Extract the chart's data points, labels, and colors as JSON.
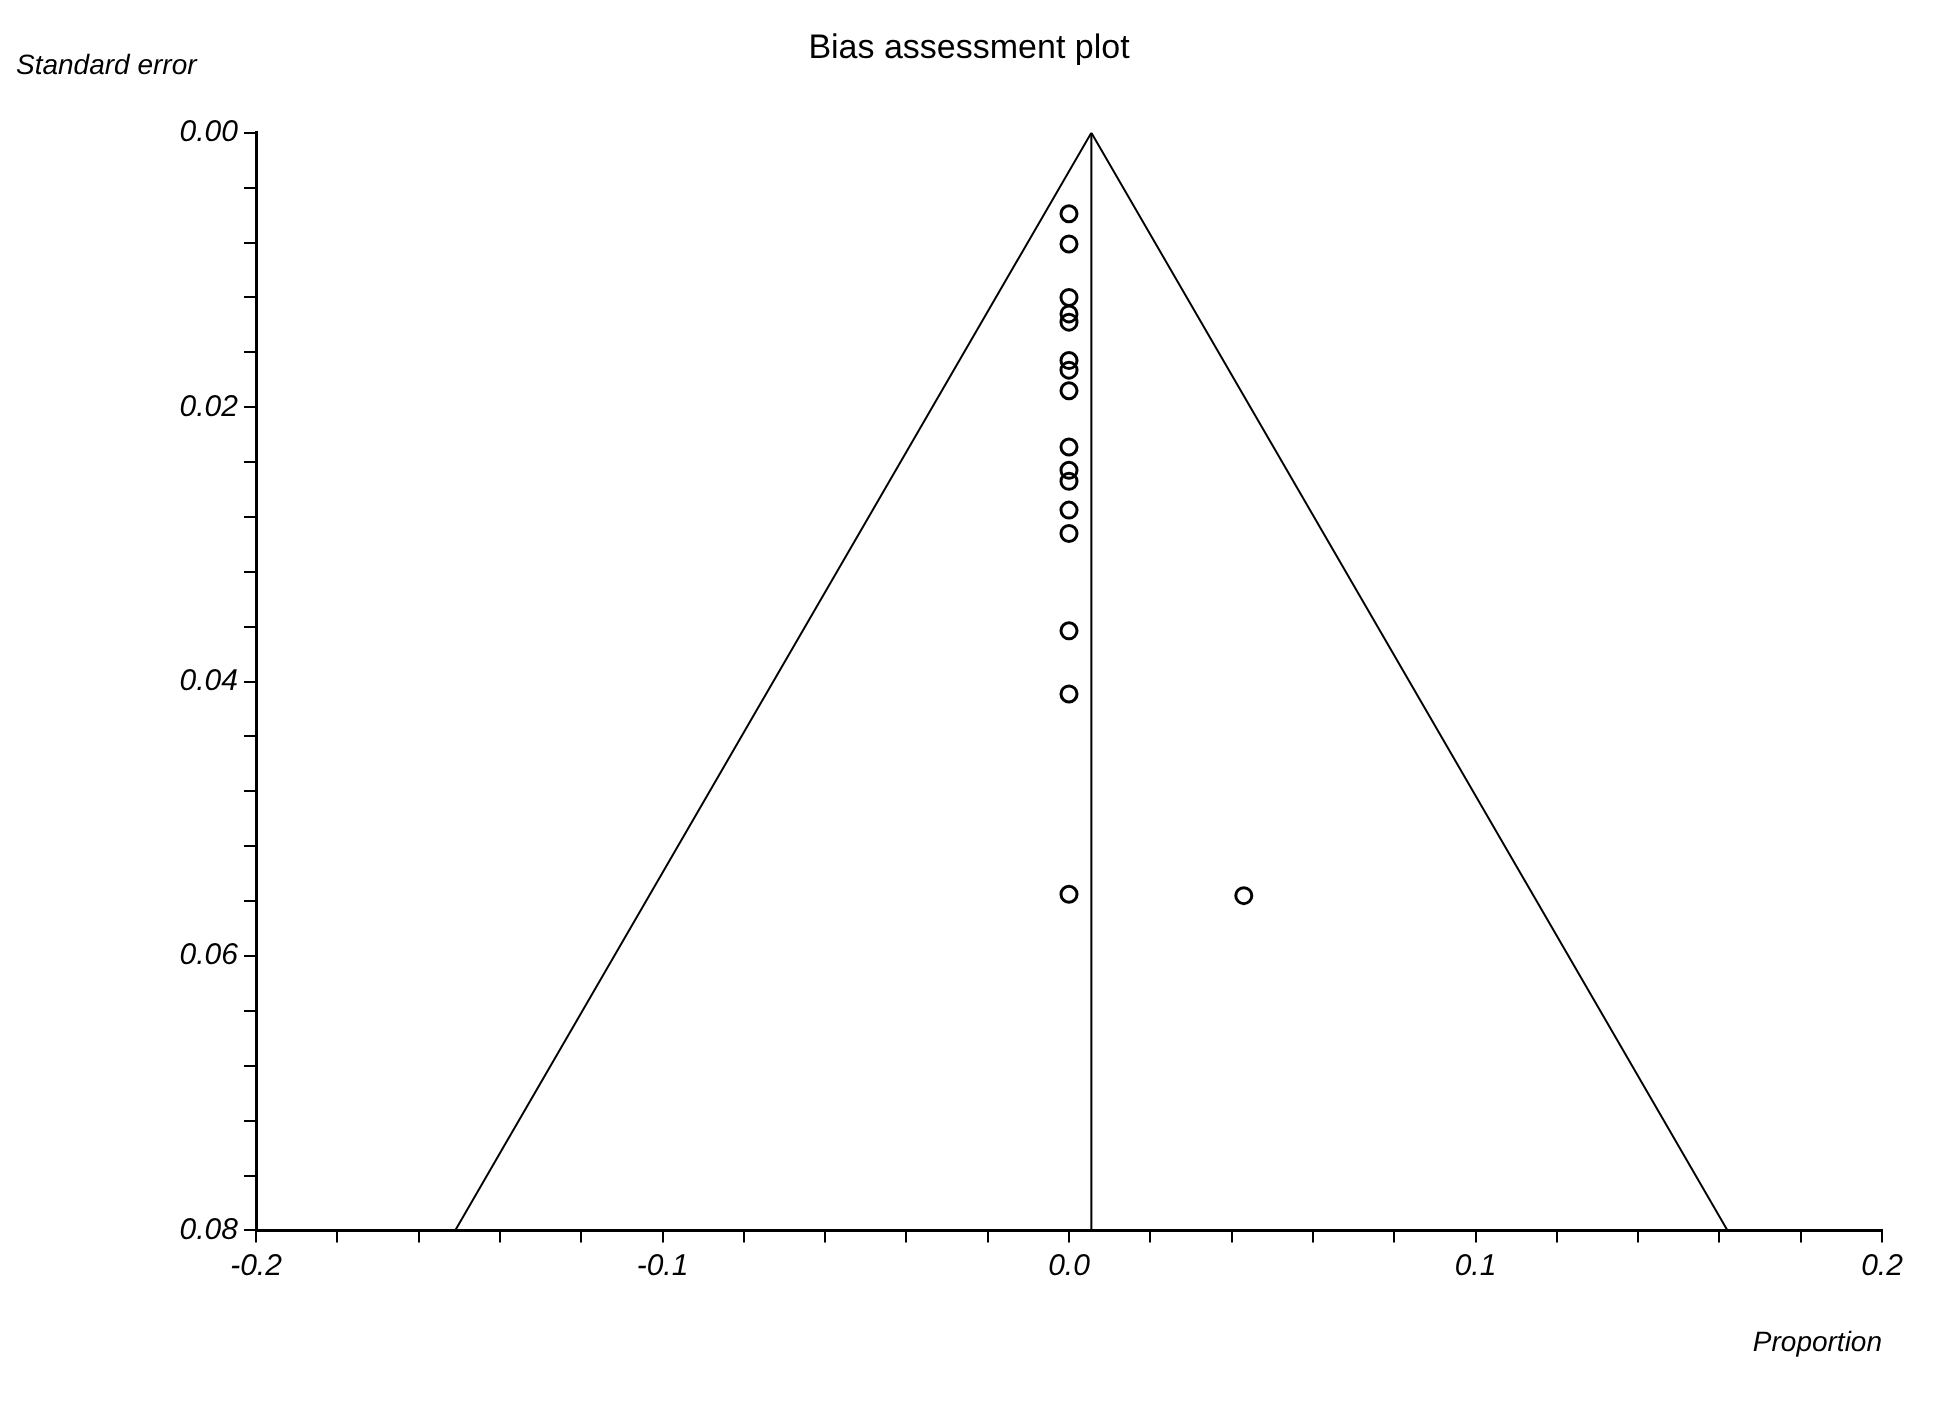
{
  "chart_data": {
    "type": "scatter",
    "title": "Bias assessment plot",
    "xlabel": "Proportion",
    "ylabel": "Standard error",
    "series": [
      {
        "type": "scatter",
        "color": "#000000",
        "marker": "circle",
        "x": [
          0,
          0,
          0,
          0,
          0,
          0,
          0,
          0,
          0,
          0,
          0,
          0,
          0,
          0,
          0,
          0,
          0.043
        ],
        "values": [
          0.0059,
          0.0081,
          0.012,
          0.0132,
          0.0138,
          0.0166,
          0.0173,
          0.0188,
          0.0229,
          0.0246,
          0.0254,
          0.0275,
          0.0292,
          0.0363,
          0.0409,
          0.0555,
          0.0556
        ]
      },
      {
        "type": "line",
        "color": "#000000",
        "marker": "none",
        "x": [
          -0.151,
          0.0055,
          0.162
        ],
        "values": [
          0.08,
          0,
          0.08
        ]
      }
    ],
    "ref_lines": [
      {
        "axis": "x",
        "value": 0.0055,
        "color": "#000000"
      }
    ],
    "xlim": [
      -0.2,
      0.2
    ],
    "xticks": [
      {
        "value": -0.2,
        "label": "-0.2"
      },
      {
        "value": -0.18,
        "label": null
      },
      {
        "value": -0.16,
        "label": null
      },
      {
        "value": -0.14,
        "label": null
      },
      {
        "value": -0.12,
        "label": null
      },
      {
        "value": -0.1,
        "label": "-0.1"
      },
      {
        "value": -0.08,
        "label": null
      },
      {
        "value": -0.06,
        "label": null
      },
      {
        "value": -0.04,
        "label": null
      },
      {
        "value": -0.02,
        "label": null
      },
      {
        "value": 0,
        "label": "0.0"
      },
      {
        "value": 0.02,
        "label": null
      },
      {
        "value": 0.04,
        "label": null
      },
      {
        "value": 0.06,
        "label": null
      },
      {
        "value": 0.08,
        "label": null
      },
      {
        "value": 0.1,
        "label": "0.1"
      },
      {
        "value": 0.12,
        "label": null
      },
      {
        "value": 0.14,
        "label": null
      },
      {
        "value": 0.16,
        "label": null
      },
      {
        "value": 0.18,
        "label": null
      },
      {
        "value": 0.2,
        "label": "0.2"
      }
    ],
    "ylim": [
      0.08,
      0
    ],
    "yticks": [
      {
        "value": 0,
        "label": "0.00"
      },
      {
        "value": 0.004,
        "label": null
      },
      {
        "value": 0.008,
        "label": null
      },
      {
        "value": 0.012,
        "label": null
      },
      {
        "value": 0.016,
        "label": null
      },
      {
        "value": 0.02,
        "label": "0.02"
      },
      {
        "value": 0.024,
        "label": null
      },
      {
        "value": 0.028,
        "label": null
      },
      {
        "value": 0.032,
        "label": null
      },
      {
        "value": 0.036,
        "label": null
      },
      {
        "value": 0.04,
        "label": "0.04"
      },
      {
        "value": 0.044,
        "label": null
      },
      {
        "value": 0.048,
        "label": null
      },
      {
        "value": 0.052,
        "label": null
      },
      {
        "value": 0.056,
        "label": null
      },
      {
        "value": 0.06,
        "label": "0.06"
      },
      {
        "value": 0.064,
        "label": null
      },
      {
        "value": 0.068,
        "label": null
      },
      {
        "value": 0.072,
        "label": null
      },
      {
        "value": 0.076,
        "label": null
      },
      {
        "value": 0.08,
        "label": "0.08"
      }
    ],
    "grid": false,
    "legend": false
  }
}
